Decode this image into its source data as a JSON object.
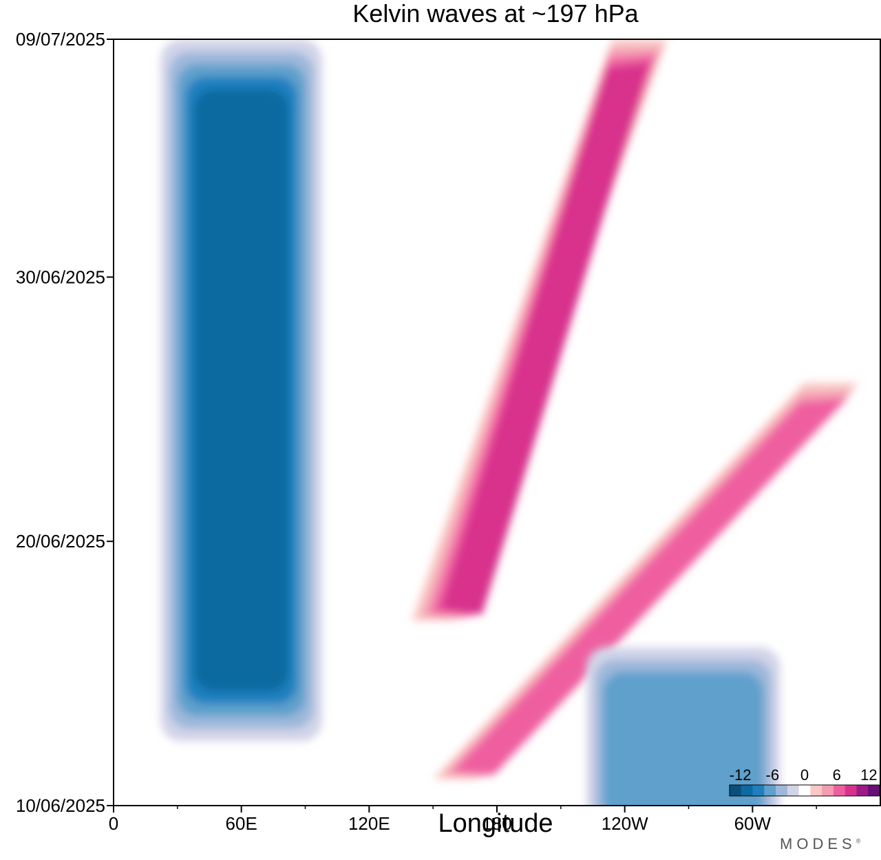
{
  "title": "Kelvin waves at ~197 hPa",
  "brand": "MODES",
  "brand_mark": "®",
  "chart_data": {
    "type": "heatmap",
    "title": "Kelvin waves at ~197 hPa",
    "xlabel": "Longitude",
    "ylabel": "",
    "x_ticks": [
      "0",
      "60E",
      "120E",
      "180",
      "120W",
      "60W"
    ],
    "x_tick_values": [
      0,
      60,
      120,
      180,
      240,
      300
    ],
    "xlim": [
      0,
      360
    ],
    "y_ticks": [
      "09/07/2025",
      "30/06/2025",
      "20/06/2025",
      "10/06/2025"
    ],
    "y_tick_values": [
      "2025-07-09",
      "2025-06-30",
      "2025-06-20",
      "2025-06-10"
    ],
    "ylim": [
      "2025-06-10",
      "2025-07-09"
    ],
    "colorbar": {
      "labels": [
        "-12",
        "-6",
        "0",
        "6",
        "12"
      ],
      "label_values": [
        -12,
        -6,
        0,
        6,
        12
      ],
      "levels": [
        -14,
        -12,
        -10,
        -8,
        -6,
        -4,
        -2,
        2,
        4,
        6,
        8,
        10,
        12,
        14
      ],
      "colors": [
        "#0a4f7c",
        "#0e6aa0",
        "#1f80bf",
        "#5fa0cc",
        "#9db8da",
        "#d2d4e8",
        "#ffffff",
        "#f8c8c4",
        "#f49db3",
        "#ef5fa0",
        "#d8338c",
        "#9c1b85",
        "#6a0d76"
      ]
    },
    "features": [
      {
        "name": "negative anomaly band",
        "lon": [
          35,
          85
        ],
        "dates": [
          "2025-06-14",
          "2025-07-09"
        ],
        "peak": -12
      },
      {
        "name": "positive anomaly band 1",
        "lon": [
          140,
          260
        ],
        "dates": [
          "2025-06-17",
          "2025-07-09"
        ],
        "peak": 12
      },
      {
        "name": "positive anomaly band 2",
        "lon": [
          150,
          350
        ],
        "dates": [
          "2025-06-11",
          "2025-06-26"
        ],
        "peak": 10
      },
      {
        "name": "negative anomaly patch",
        "lon": [
          235,
          300
        ],
        "dates": [
          "2025-06-10",
          "2025-06-16"
        ],
        "peak": -8
      }
    ]
  }
}
